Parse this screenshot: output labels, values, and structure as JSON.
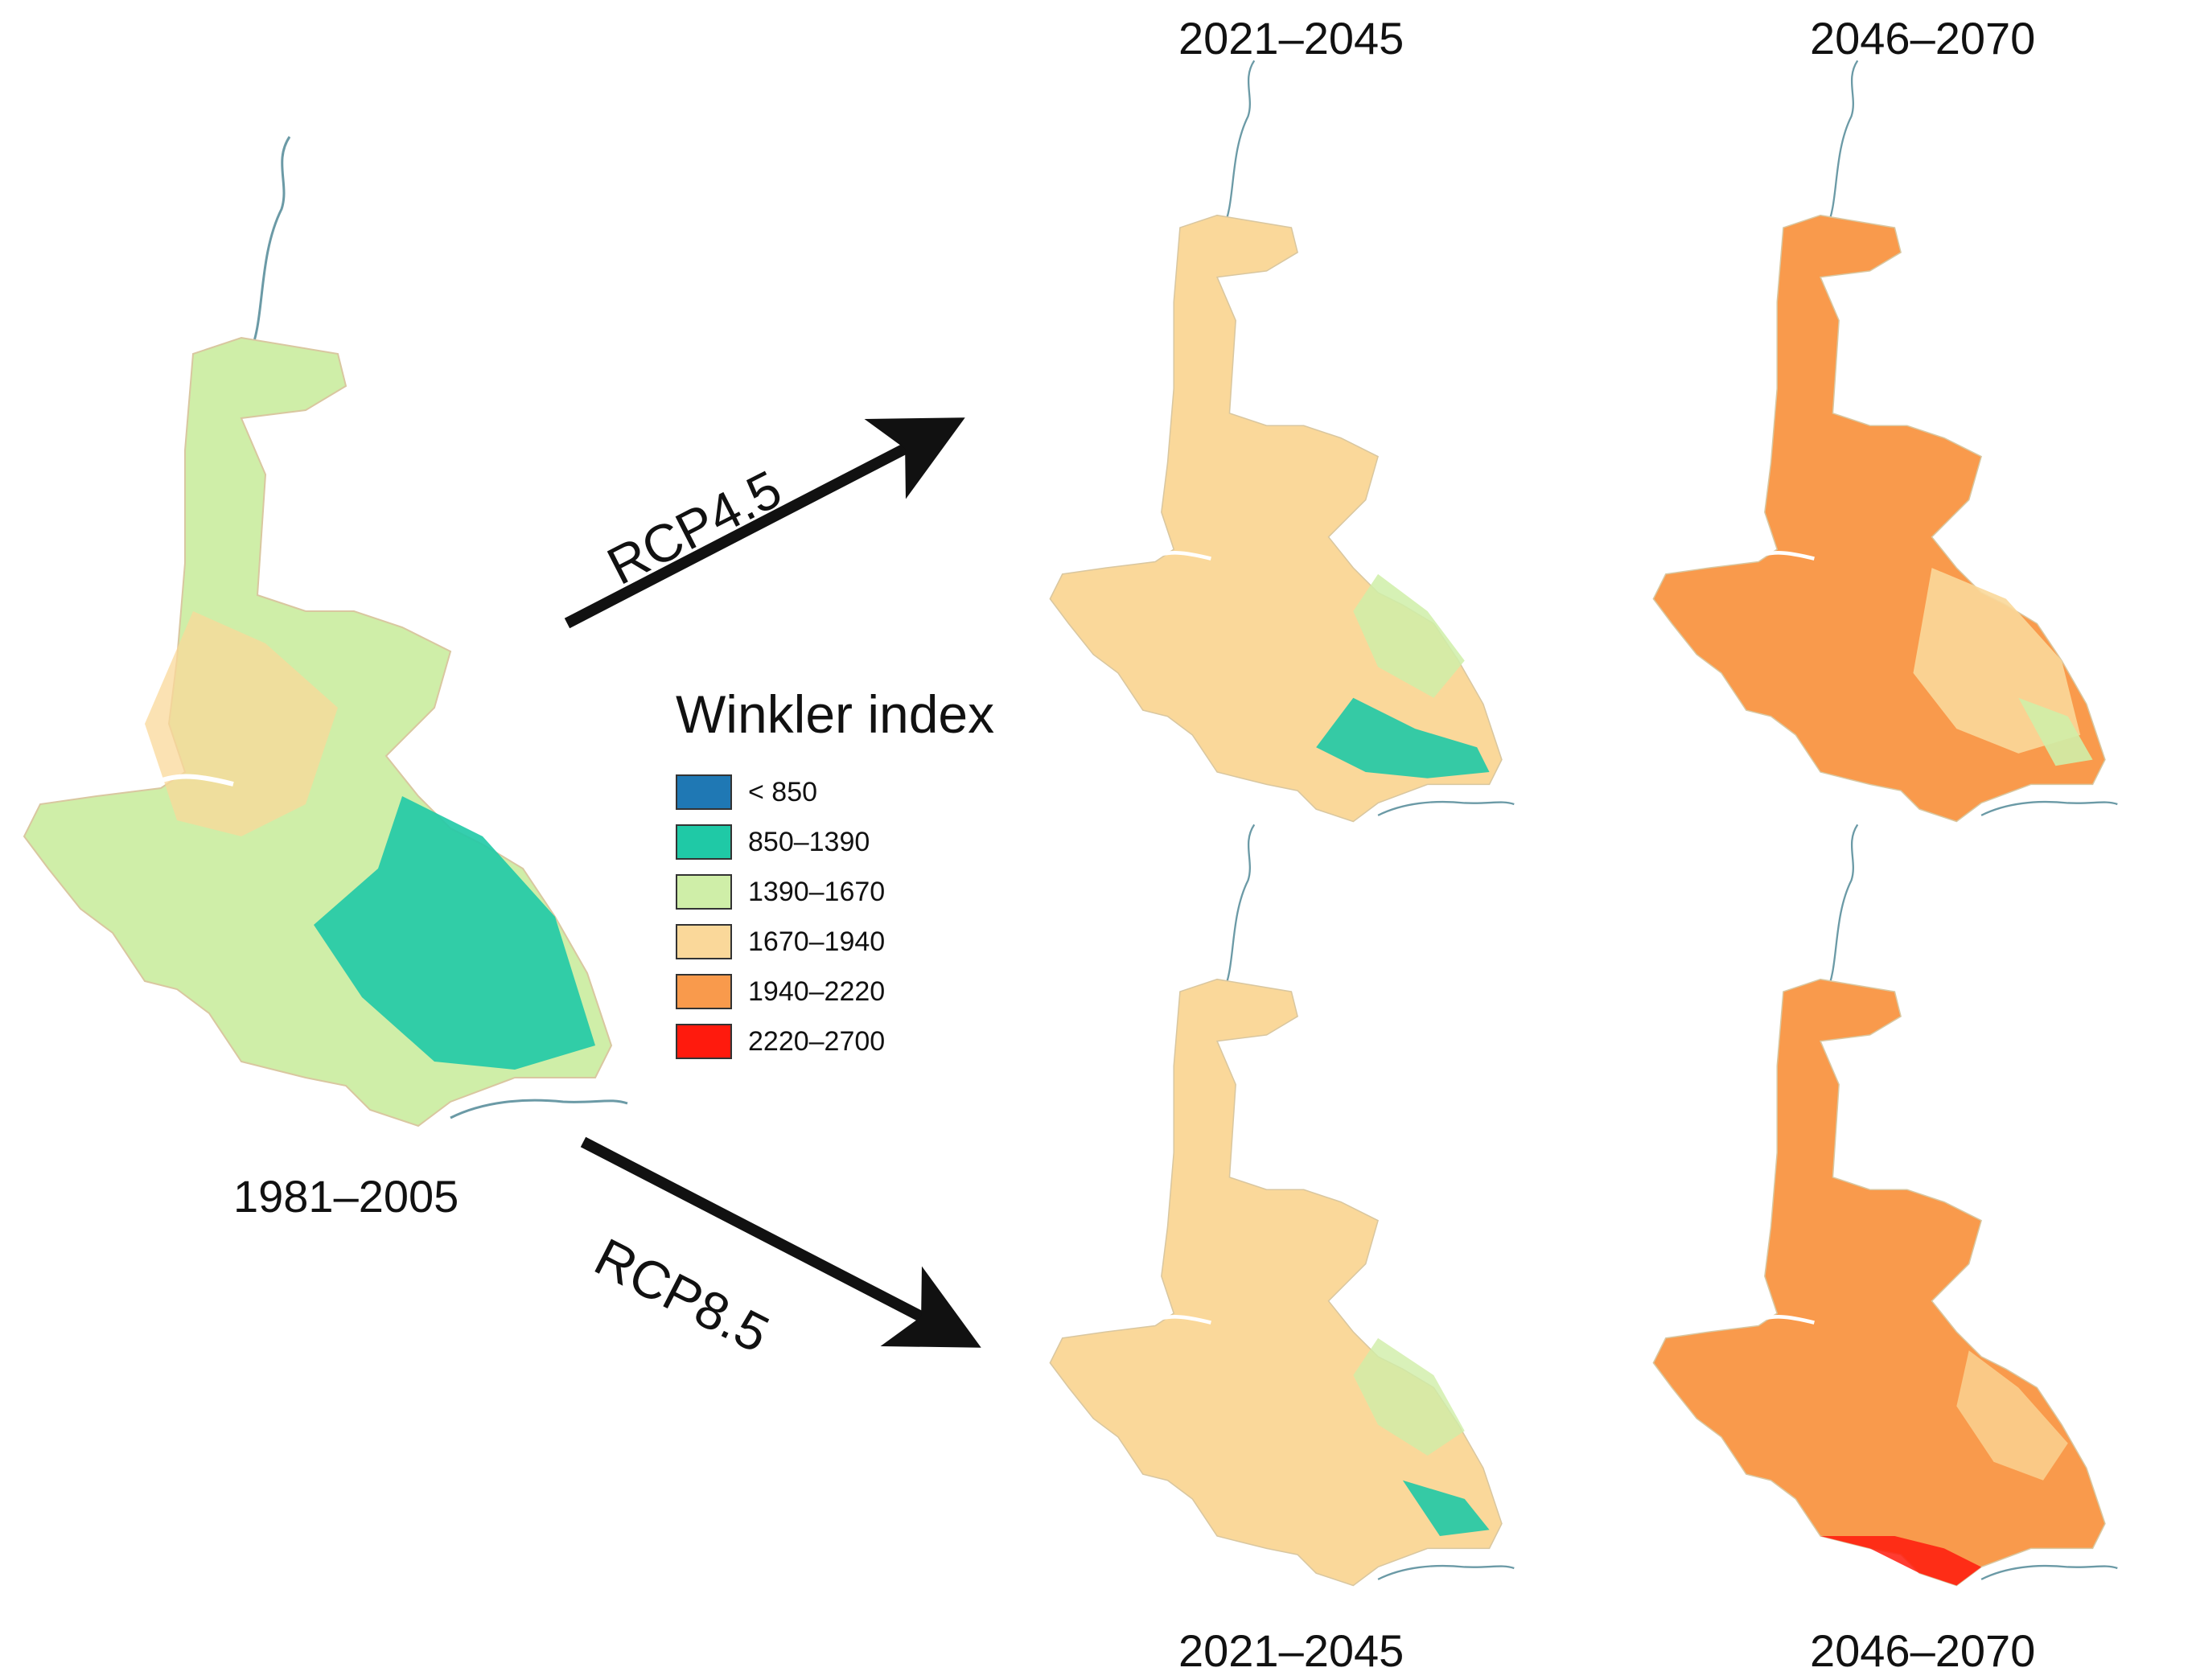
{
  "periods": {
    "baseline": "1981–2005",
    "near_top": "2021–2045",
    "far_top": "2046–2070",
    "near_bottom": "2021–2045",
    "far_bottom": "2046–2070"
  },
  "scenarios": {
    "rcp45": "RCP4.5",
    "rcp85": "RCP8.5"
  },
  "legend": {
    "title": "Winkler index",
    "classes": [
      {
        "label": "< 850",
        "color": "#1f78b4"
      },
      {
        "label": "850–1390",
        "color": "#1fc9a6"
      },
      {
        "label": "1390–1670",
        "color": "#cfeea8"
      },
      {
        "label": "1670–1940",
        "color": "#fad89a"
      },
      {
        "label": "1940–2220",
        "color": "#f99a4c"
      },
      {
        "label": "2220–2700",
        "color": "#ff1a0d"
      }
    ]
  },
  "maps": {
    "baseline": {
      "base": "#cfeea8",
      "overlay1": "#fad89a",
      "overlay2": "#1fc9a6"
    },
    "rcp45_near": {
      "base": "#fad89a",
      "overlay1": "#cfeea8",
      "overlay2": "#1fc9a6"
    },
    "rcp45_far": {
      "base": "#f99a4c",
      "overlay1": "#fad89a",
      "overlay2": "#cfeea8"
    },
    "rcp85_near": {
      "base": "#fad89a",
      "overlay1": "#cfeea8",
      "overlay2": "#1fc9a6"
    },
    "rcp85_far": {
      "base": "#f99a4c",
      "overlay1": "#ff1a0d",
      "overlay2": "#fad89a"
    }
  }
}
